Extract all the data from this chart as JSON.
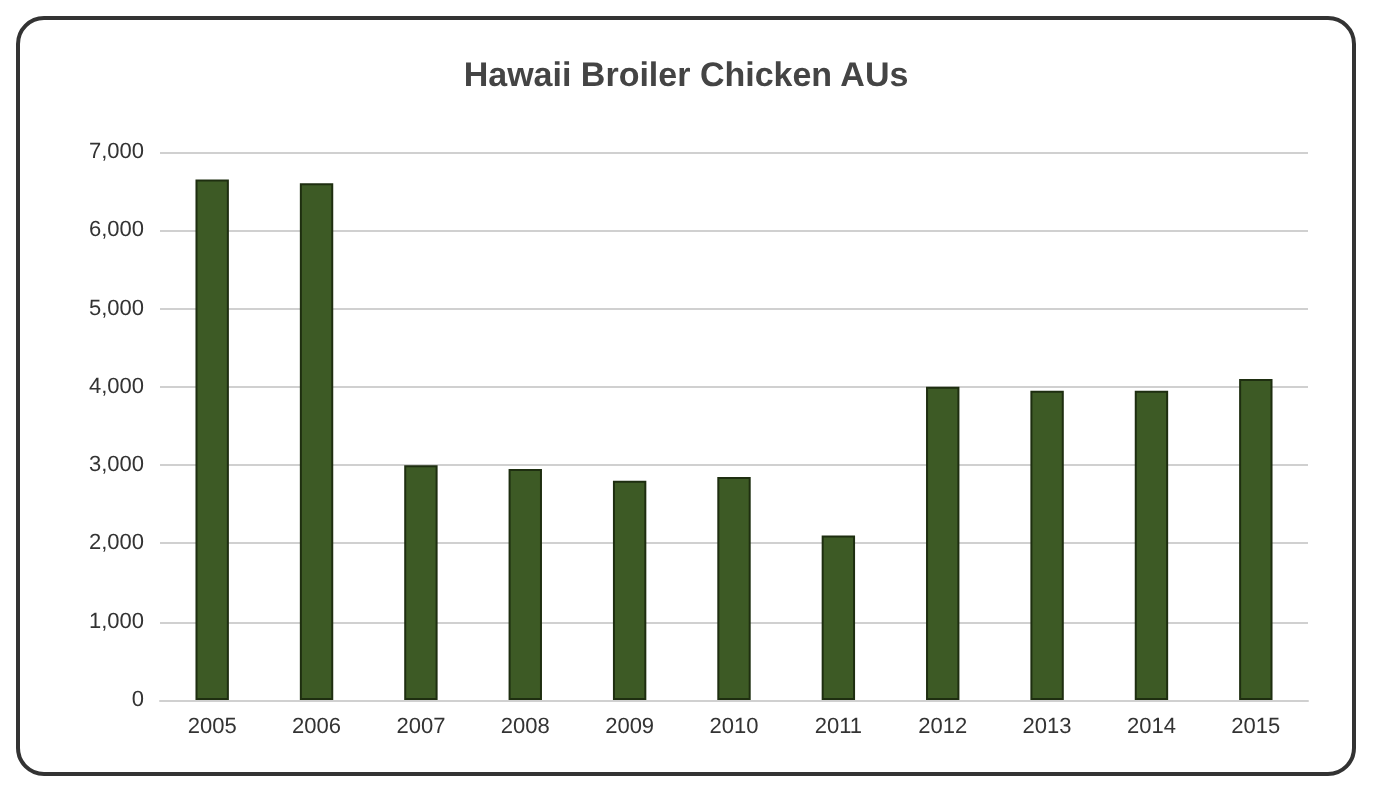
{
  "chart_data": {
    "type": "bar",
    "title": "Hawaii Broiler Chicken AUs",
    "categories": [
      "2005",
      "2006",
      "2007",
      "2008",
      "2009",
      "2010",
      "2011",
      "2012",
      "2013",
      "2014",
      "2015"
    ],
    "values": [
      6650,
      6600,
      3000,
      2950,
      2800,
      2850,
      2100,
      4000,
      3950,
      3950,
      4100
    ],
    "color": "#3d5a25",
    "ylim": [
      0,
      7000
    ],
    "yticks": [
      0,
      {
        "value": 1000,
        "label": "1,000"
      },
      {
        "value": 2000,
        "label": "2,000"
      },
      {
        "value": 3000,
        "label": "3,000"
      },
      {
        "value": 4000,
        "label": "4,000"
      },
      {
        "value": 5000,
        "label": "5,000"
      },
      {
        "value": 6000,
        "label": "6,000"
      },
      {
        "value": 7000,
        "label": "7,000"
      }
    ],
    "grid": "y"
  }
}
